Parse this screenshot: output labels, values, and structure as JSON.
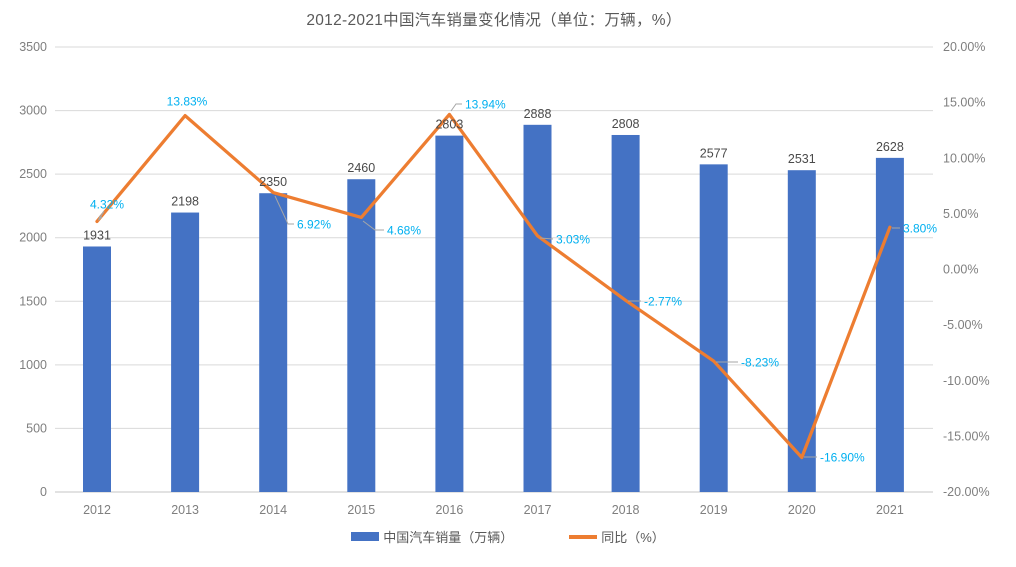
{
  "title": "2012-2021中国汽车销量变化情况（单位：万辆，%）",
  "colors": {
    "bar": "#4472C4",
    "line": "#ED7D31",
    "bar_label": "#4a4a4a",
    "pct_label": "#00B0F0",
    "axis_label": "#7f7f7f",
    "gridline": "#D9D9D9",
    "baseline": "#C6C6C6",
    "leader": "#A6A6A6",
    "title": "#595959",
    "legend_text": "#595959",
    "background": "#ffffff"
  },
  "legend": {
    "items": [
      {
        "label": "中国汽车销量（万辆）",
        "swatch": "bar"
      },
      {
        "label": "同比（%）",
        "swatch": "line"
      }
    ]
  },
  "chart_data": {
    "type": "combo bar+line, dual axis",
    "title": "2012-2021中国汽车销量变化情况（单位：万辆，%）",
    "categories": [
      "2012",
      "2013",
      "2014",
      "2015",
      "2016",
      "2017",
      "2018",
      "2019",
      "2020",
      "2021"
    ],
    "series": [
      {
        "name": "中国汽车销量（万辆）",
        "type": "bar",
        "axis": "left",
        "values": [
          1931,
          2198,
          2350,
          2460,
          2803,
          2888,
          2808,
          2577,
          2531,
          2628
        ],
        "data_labels": [
          "1931",
          "2198",
          "2350",
          "2460",
          "2803",
          "2888",
          "2808",
          "2577",
          "2531",
          "2628"
        ]
      },
      {
        "name": "同比（%）",
        "type": "line",
        "axis": "right",
        "values": [
          4.32,
          13.83,
          6.92,
          4.68,
          13.94,
          3.03,
          -2.77,
          -8.23,
          -16.9,
          3.8
        ],
        "data_labels": [
          "4.32%",
          "13.83%",
          "6.92%",
          "4.68%",
          "13.94%",
          "3.03%",
          "-2.77%",
          "-8.23%",
          "-16.90%",
          "3.80%"
        ]
      }
    ],
    "left_axis": {
      "min": 0,
      "max": 3500,
      "step": 500,
      "ticks": [
        "3500",
        "3000",
        "2500",
        "2000",
        "1500",
        "1000",
        "500",
        "0"
      ]
    },
    "right_axis": {
      "min": -20,
      "max": 20,
      "step": 5,
      "ticks": [
        "20.00%",
        "15.00%",
        "10.00%",
        "5.00%",
        "0.00%",
        "-5.00%",
        "-10.00%",
        "-15.00%",
        "-20.00%"
      ]
    },
    "grid": "horizontal gridlines at left-axis steps",
    "legend_position": "bottom"
  }
}
